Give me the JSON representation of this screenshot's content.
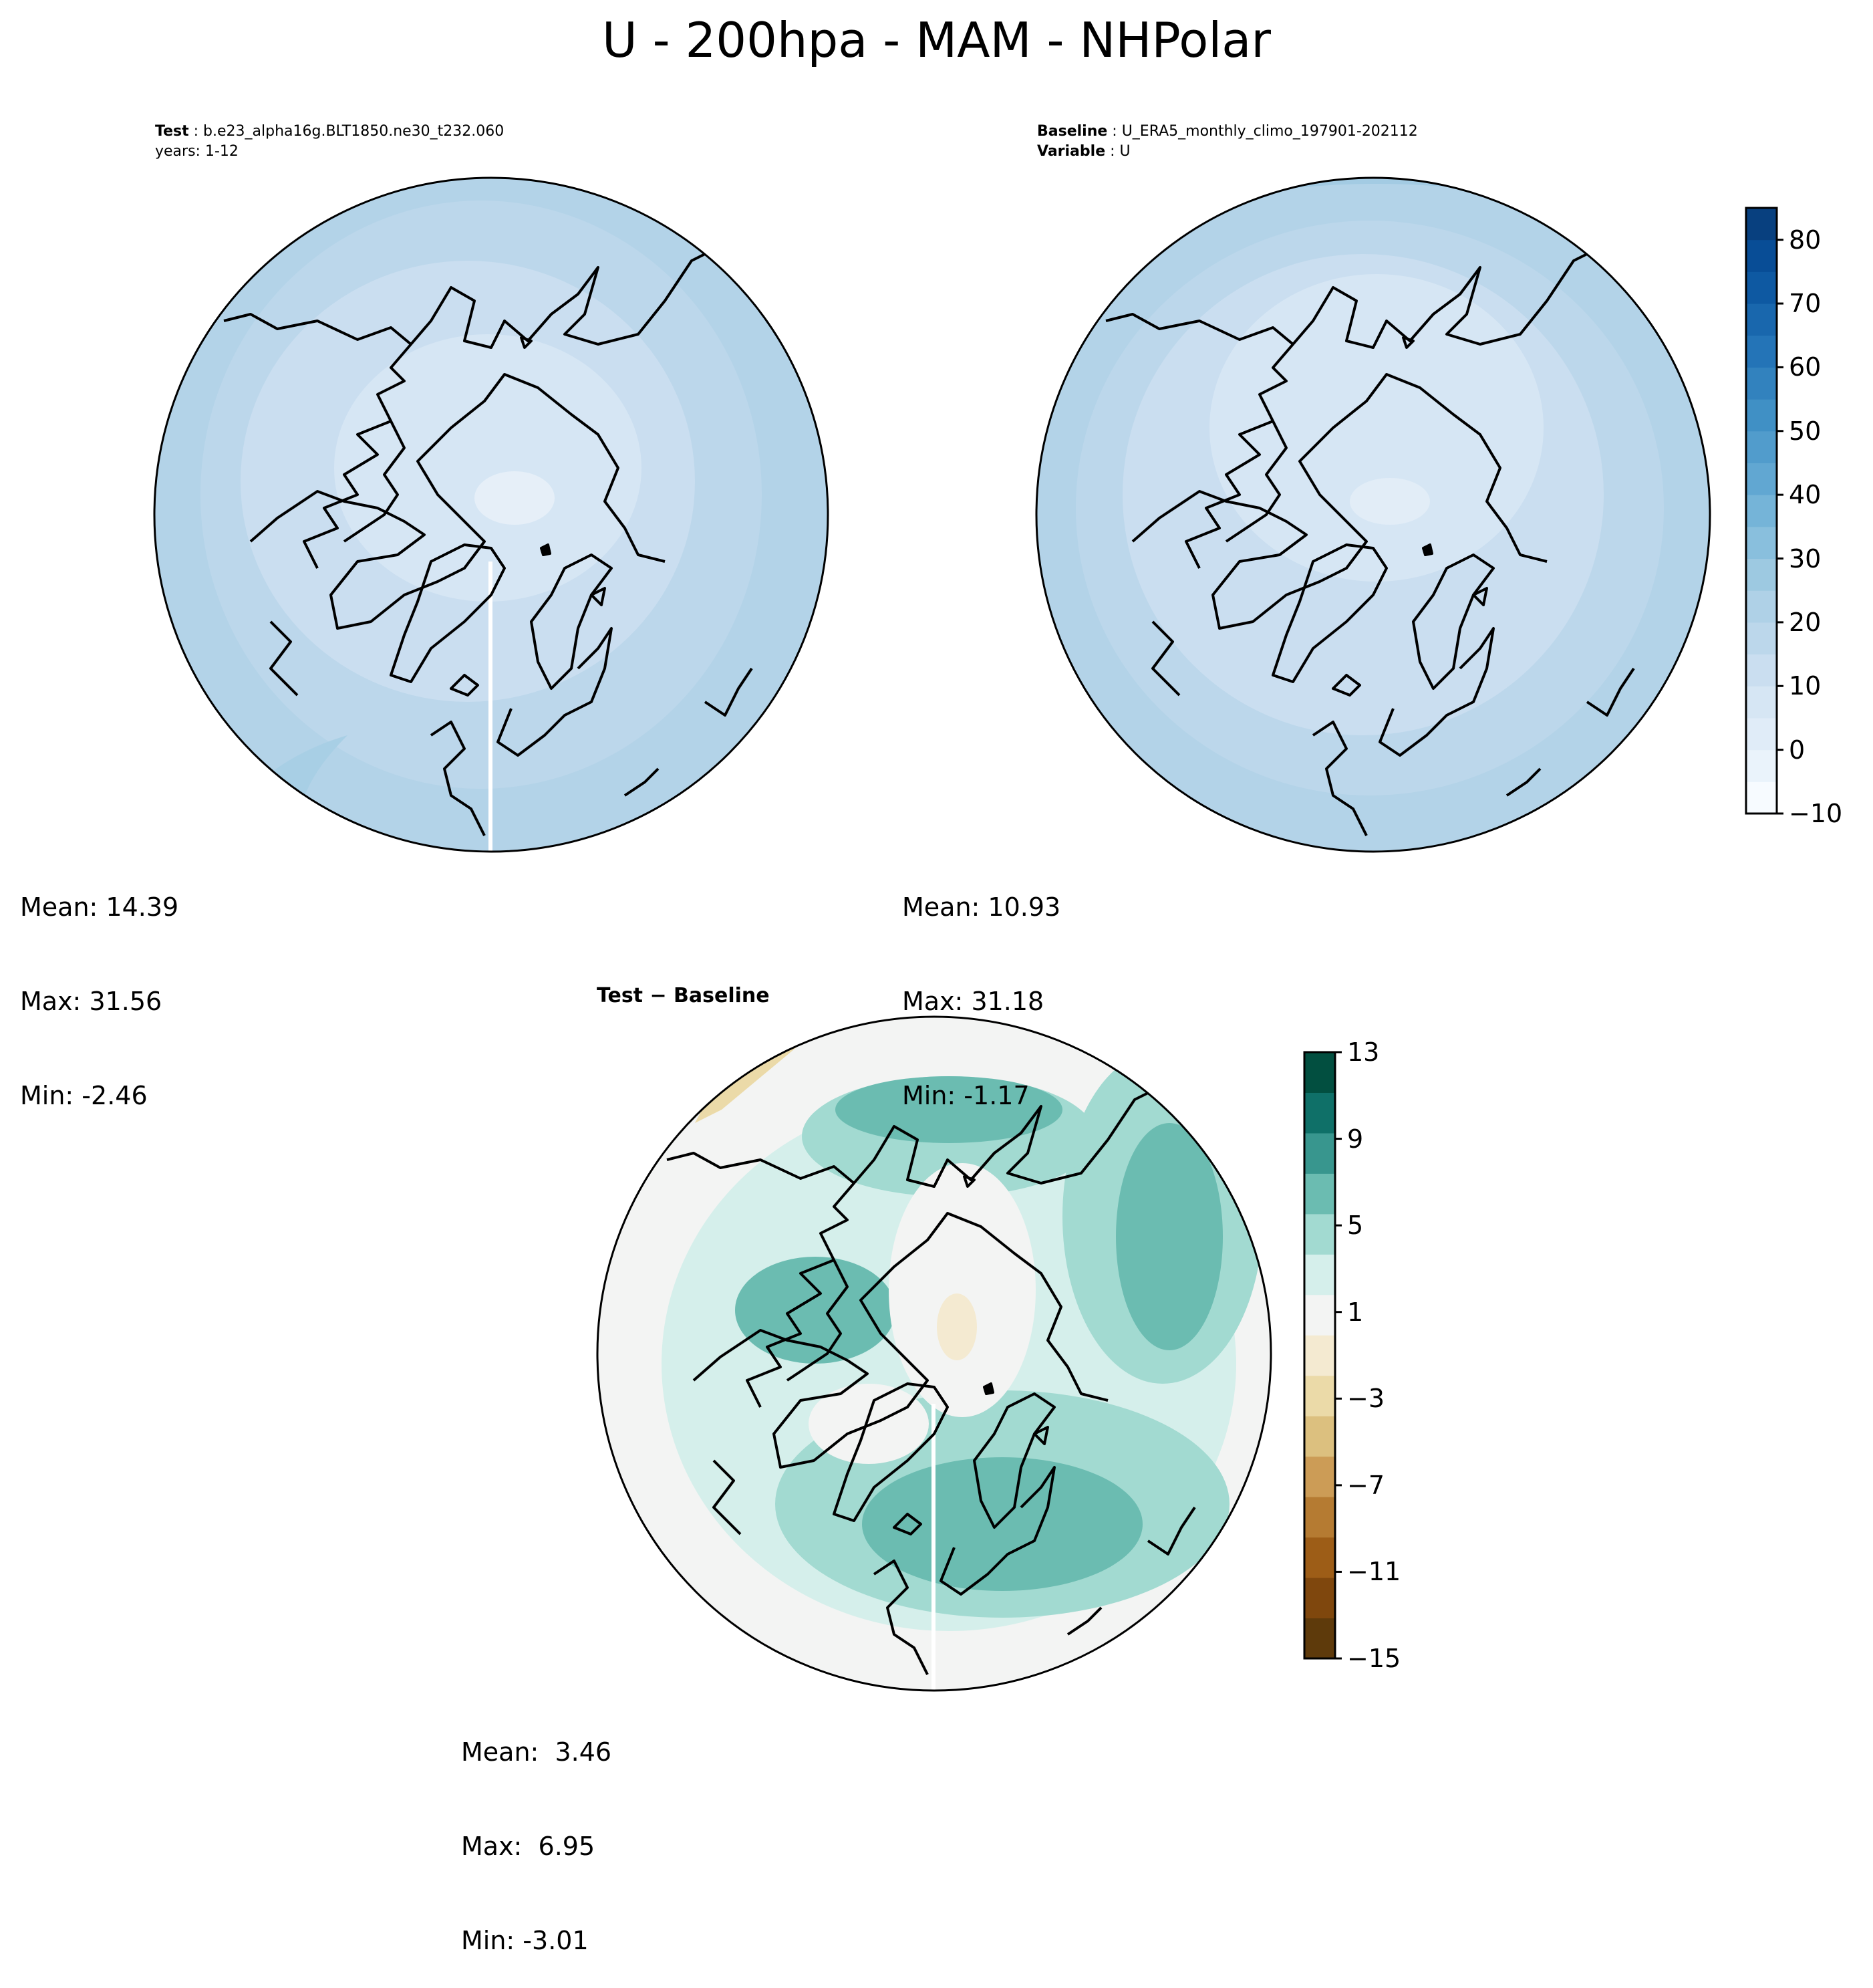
{
  "figure": {
    "title": "U - 200hpa - MAM - NHPolar"
  },
  "panels": {
    "test": {
      "label_bold": "Test",
      "label_text": "b.e23_alpha16g.BLT1850.ne30_t232.060",
      "line2": "years: 1-12",
      "stats": {
        "mean": "Mean: 14.39",
        "max": "Max: 31.56",
        "min": "Min: -2.46"
      }
    },
    "baseline": {
      "label_bold": "Baseline",
      "label_text": "U_ERA5_monthly_climo_197901-202112",
      "line2_bold": "Variable",
      "line2_text": "U",
      "stats": {
        "mean": "Mean: 10.93",
        "max": "Max: 31.18",
        "min": "Min: -1.17"
      }
    },
    "diff": {
      "title": "Test − Baseline",
      "stats": {
        "mean": "Mean:  3.46",
        "max": "Max:  6.95",
        "min": "Min: -3.01"
      }
    }
  },
  "colorbars": {
    "field": {
      "ticks": [
        "−10",
        "0",
        "10",
        "20",
        "30",
        "40",
        "50",
        "60",
        "70",
        "80"
      ],
      "tick_values": [
        -10,
        0,
        10,
        20,
        30,
        40,
        50,
        60,
        70,
        80
      ],
      "range": [
        -10,
        85
      ],
      "colors": [
        "#f7fbff",
        "#eaf3fb",
        "#e0ecf8",
        "#d6e6f4",
        "#cadef0",
        "#bcd7eb",
        "#afd1e7",
        "#9dc9e1",
        "#89bfdd",
        "#75b4d8",
        "#61a7d2",
        "#519ccc",
        "#4090c5",
        "#3282be",
        "#2474b7",
        "#1967ad",
        "#0e59a2",
        "#084d96",
        "#08407f"
      ]
    },
    "diff": {
      "ticks": [
        "13",
        "9",
        "5",
        "1",
        "−3",
        "−7",
        "−11",
        "−15"
      ],
      "tick_values": [
        13,
        9,
        5,
        1,
        -3,
        -7,
        -11,
        -15
      ],
      "range": [
        -15,
        13
      ],
      "colors": [
        "#5e3a0b",
        "#7f470d",
        "#9d5d17",
        "#b57b32",
        "#cc9c56",
        "#dcc07f",
        "#ebdaa8",
        "#f4ead1",
        "#f3f4f3",
        "#d5efeb",
        "#a2dad1",
        "#6bbcb1",
        "#38968e",
        "#0f7068",
        "#024f40"
      ]
    }
  },
  "colors": {
    "coast": "#000000",
    "test_fill": "#c9ddf0",
    "baseline_fill": "#c9ddf0",
    "diff_fill": "#d5efeb"
  }
}
